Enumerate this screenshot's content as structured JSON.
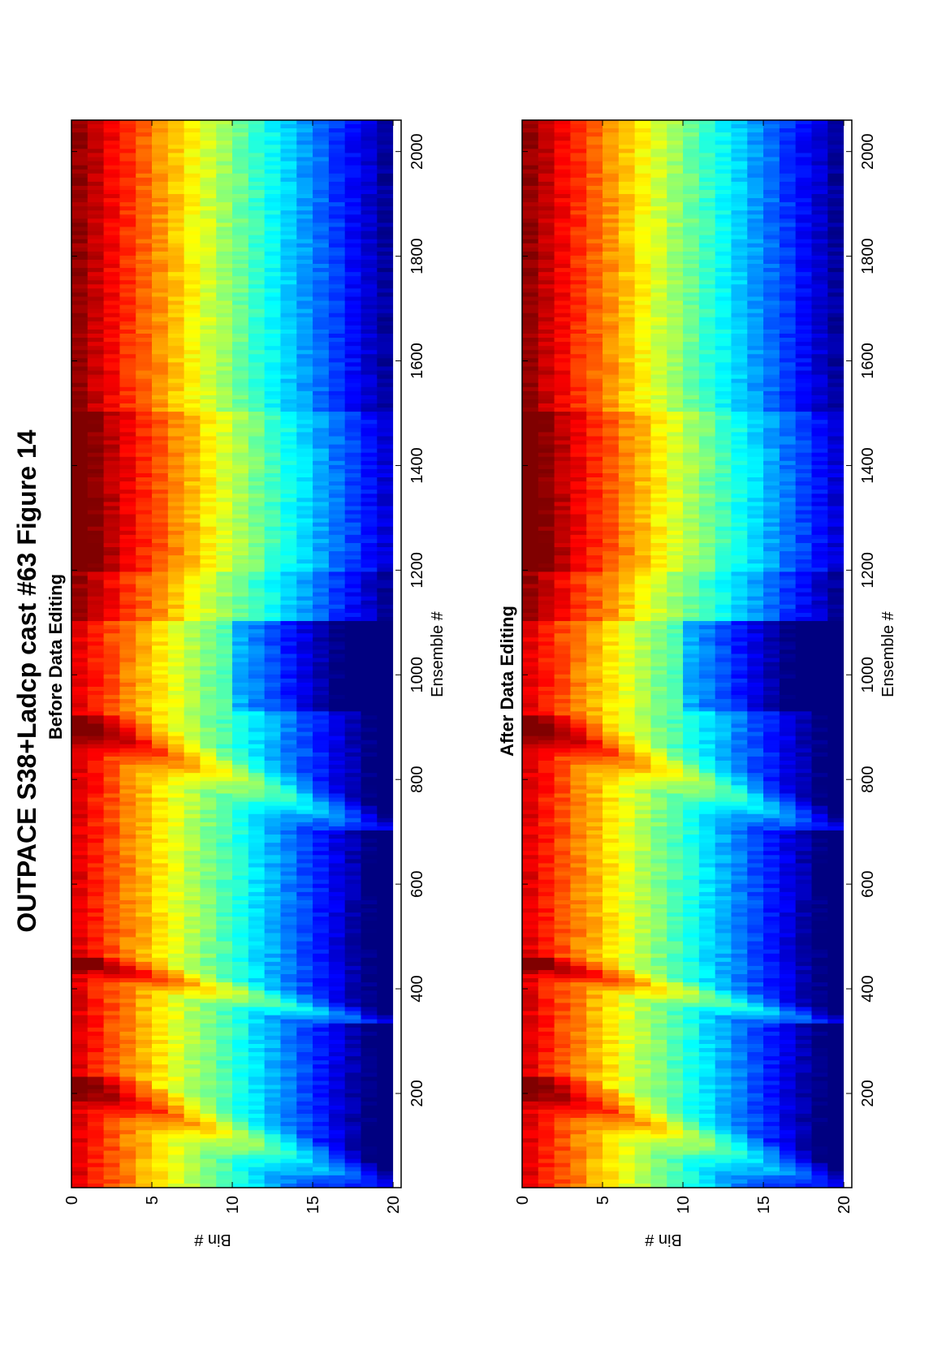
{
  "figure": {
    "title": "OUTPACE S38+Ladcp cast #63  Figure 14"
  },
  "chart_data": [
    {
      "type": "heatmap",
      "title": "Before Data Editing",
      "xlabel": "Ensemble #",
      "ylabel": "Bin #",
      "xlim": [
        20,
        2060
      ],
      "ylim": [
        0,
        20.5
      ],
      "y_reversed": true,
      "colormap": "jet",
      "x_ticks": [
        "200",
        "400",
        "600",
        "800",
        "1000",
        "1200",
        "1400",
        "1600",
        "1800",
        "2000"
      ],
      "y_ticks": [
        "0",
        "5",
        "10",
        "15",
        "20"
      ],
      "bins": 20,
      "ensembles": 2040,
      "value_range": [
        0,
        1
      ],
      "description_regions": [
        {
          "ensemble_range": [
            20,
            1100
          ],
          "notes": "descent/ascent ramps with bright bands, rapid color decay with depth"
        },
        {
          "ensemble_range": [
            1100,
            2060
          ],
          "notes": "high values (yellow/orange) near top bins, blue below bin ~10"
        }
      ]
    },
    {
      "type": "heatmap",
      "title": "After Data Editing",
      "xlabel": "Ensemble #",
      "ylabel": "Bin #",
      "xlim": [
        20,
        2060
      ],
      "ylim": [
        0,
        20.5
      ],
      "y_reversed": true,
      "colormap": "jet",
      "x_ticks": [
        "200",
        "400",
        "600",
        "800",
        "1000",
        "1200",
        "1400",
        "1600",
        "1800",
        "2000"
      ],
      "y_ticks": [
        "0",
        "5",
        "10",
        "15",
        "20"
      ],
      "bins": 20,
      "ensembles": 2040,
      "value_range": [
        0,
        1
      ]
    }
  ]
}
